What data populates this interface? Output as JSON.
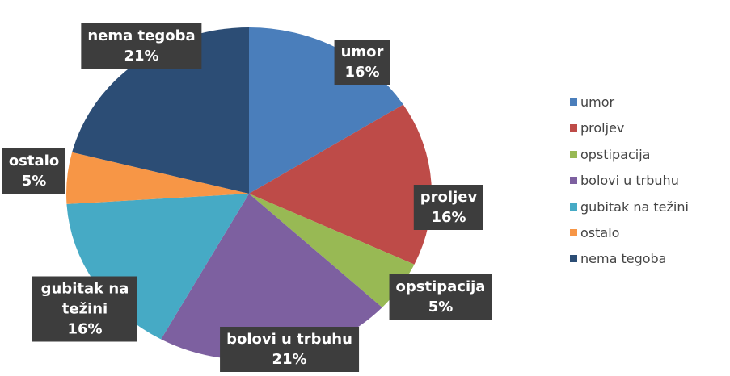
{
  "chart_data": {
    "type": "pie",
    "categories": [
      "umor",
      "proljev",
      "opstipacija",
      "bolovi u trbuhu",
      "gubitak na težini",
      "ostalo",
      "nema tegoba"
    ],
    "values": [
      16,
      16,
      5,
      21,
      16,
      5,
      21
    ],
    "value_labels": [
      "16%",
      "16%",
      "5%",
      "21%",
      "16%",
      "5%",
      "21%"
    ],
    "colors": [
      "#4a7ebb",
      "#be4b48",
      "#98b954",
      "#7d60a0",
      "#46aac5",
      "#f79646",
      "#2c4d75"
    ],
    "legend": "right"
  }
}
